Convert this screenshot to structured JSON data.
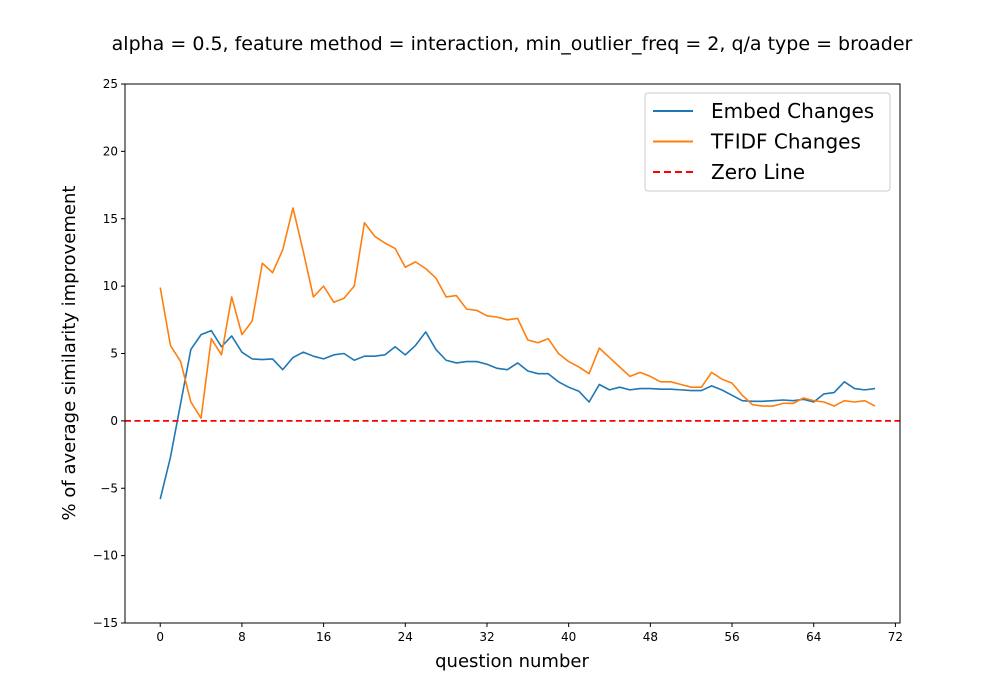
{
  "chart_data": {
    "type": "line",
    "title": "alpha = 0.5,  feature method = interaction, min_outlier_freq = 2,  q/a type = broader",
    "xlabel": "question number",
    "ylabel": "% of average similarity improvement",
    "xlim": [
      -3.45,
      72.45
    ],
    "ylim": [
      -15,
      25
    ],
    "xticks": [
      0,
      8,
      16,
      24,
      32,
      40,
      48,
      56,
      64,
      72
    ],
    "yticks": [
      -15,
      -10,
      -5,
      0,
      5,
      10,
      15,
      20,
      25
    ],
    "grid": false,
    "legend_position": "top-right",
    "series": [
      {
        "name": "Embed Changes",
        "color": "#1f77b4",
        "style": "solid",
        "values": [
          -5.8,
          -2.7,
          1.3,
          5.3,
          6.4,
          6.7,
          5.5,
          6.3,
          5.1,
          4.6,
          4.55,
          4.6,
          3.8,
          4.7,
          5.1,
          4.8,
          4.6,
          4.9,
          5.0,
          4.5,
          4.8,
          4.8,
          4.9,
          5.5,
          4.9,
          5.6,
          6.6,
          5.3,
          4.5,
          4.3,
          4.4,
          4.4,
          4.2,
          3.9,
          3.8,
          4.3,
          3.7,
          3.5,
          3.5,
          2.9,
          2.5,
          2.2,
          1.4,
          2.7,
          2.3,
          2.5,
          2.3,
          2.4,
          2.4,
          2.35,
          2.35,
          2.3,
          2.25,
          2.25,
          2.6,
          2.3,
          1.9,
          1.5,
          1.45,
          1.45,
          1.5,
          1.55,
          1.5,
          1.6,
          1.4,
          2.0,
          2.1,
          2.9,
          2.4,
          2.3,
          2.4
        ]
      },
      {
        "name": "TFIDF Changes",
        "color": "#ff7f0e",
        "style": "solid",
        "values": [
          9.9,
          5.6,
          4.4,
          1.4,
          0.2,
          6.1,
          4.9,
          9.2,
          6.4,
          7.4,
          11.7,
          11.0,
          12.7,
          15.8,
          12.6,
          9.2,
          10.0,
          8.8,
          9.1,
          10.0,
          14.7,
          13.7,
          13.2,
          12.8,
          11.4,
          11.8,
          11.3,
          10.6,
          9.2,
          9.3,
          8.3,
          8.2,
          7.8,
          7.7,
          7.5,
          7.6,
          6.0,
          5.8,
          6.1,
          5.0,
          4.4,
          4.0,
          3.5,
          5.4,
          4.7,
          4.0,
          3.3,
          3.6,
          3.3,
          2.9,
          2.9,
          2.7,
          2.5,
          2.5,
          3.6,
          3.1,
          2.8,
          1.9,
          1.2,
          1.1,
          1.1,
          1.3,
          1.3,
          1.7,
          1.5,
          1.4,
          1.1,
          1.5,
          1.4,
          1.5,
          1.1
        ]
      },
      {
        "name": "Zero Line",
        "color": "#ff0000",
        "style": "dashed",
        "y": 0
      }
    ]
  }
}
